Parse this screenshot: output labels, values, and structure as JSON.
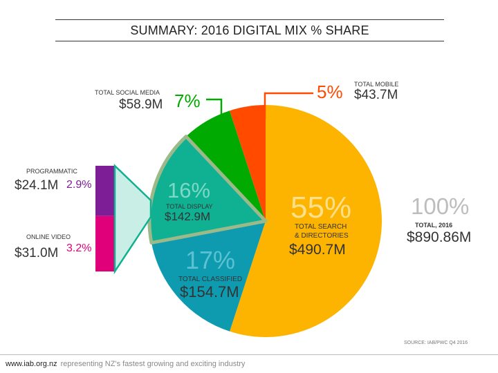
{
  "title": "SUMMARY: 2016 DIGITAL MIX % SHARE",
  "chart_data": {
    "type": "pie",
    "title": "SUMMARY: 2016 DIGITAL MIX % SHARE",
    "slices": [
      {
        "name": "TOTAL SEARCH & DIRECTORIES",
        "percent": 55,
        "value": "$490.7M",
        "color": "#FDB400"
      },
      {
        "name": "TOTAL CLASSIFIED",
        "percent": 17,
        "value": "$154.7M",
        "color": "#0E9BB0"
      },
      {
        "name": "TOTAL DISPLAY",
        "percent": 16,
        "value": "$142.9M",
        "color": "#10B092"
      },
      {
        "name": "TOTAL SOCIAL MEDIA",
        "percent": 7,
        "value": "$58.9M",
        "color": "#00AA00"
      },
      {
        "name": "TOTAL MOBILE",
        "percent": 5,
        "value": "$43.7M",
        "color": "#FF4A00"
      }
    ],
    "display_breakdown": [
      {
        "name": "PROGRAMMATIC",
        "value": "$24.1M",
        "percent": 2.9,
        "percent_label": "2.9%",
        "color": "#7E1E96"
      },
      {
        "name": "ONLINE VIDEO",
        "value": "$31.0M",
        "percent": 3.2,
        "percent_label": "3.2%",
        "color": "#E0007A"
      }
    ],
    "total": {
      "percent_label": "100%",
      "name": "TOTAL, 2016",
      "value": "$890.86M"
    },
    "source": "SOURCE: IAB/PWC Q4 2016"
  },
  "labels": {
    "search_pct": "55%",
    "search_name_1": "TOTAL SEARCH",
    "search_name_2": "& DIRECTORIES",
    "search_value": "$490.7M",
    "classified_pct": "17%",
    "classified_name": "TOTAL CLASSIFIED",
    "classified_value": "$154.7M",
    "display_pct": "16%",
    "display_name": "TOTAL DISPLAY",
    "display_value": "$142.9M",
    "social_pct": "7%",
    "social_name": "TOTAL SOCIAL MEDIA",
    "social_value": "$58.9M",
    "mobile_pct": "5%",
    "mobile_name": "TOTAL MOBILE",
    "mobile_value": "$43.7M",
    "prog_name": "PROGRAMMATIC",
    "prog_value": "$24.1M",
    "prog_pct": "2.9%",
    "video_name": "ONLINE VIDEO",
    "video_value": "$31.0M",
    "video_pct": "3.2%",
    "total_pct": "100%",
    "total_name": "TOTAL, 2016",
    "total_value": "$890.86M"
  },
  "footer": {
    "site": "www.iab.org.nz",
    "tagline": "representing NZ's fastest growing and exciting industry"
  },
  "colors": {
    "search": "#FDB400",
    "classified": "#0E9BB0",
    "display": "#10B092",
    "social": "#00AA00",
    "mobile": "#FF4A00",
    "programmatic": "#7E1E96",
    "video": "#E0007A",
    "callout": "#C8EEE6",
    "display_outline": "#9CB98A",
    "total_pct": "#BDBDBD",
    "search_pct": "#FFE08A",
    "classified_pct": "#5CC2D2",
    "display_pct": "#7DD8C6"
  }
}
